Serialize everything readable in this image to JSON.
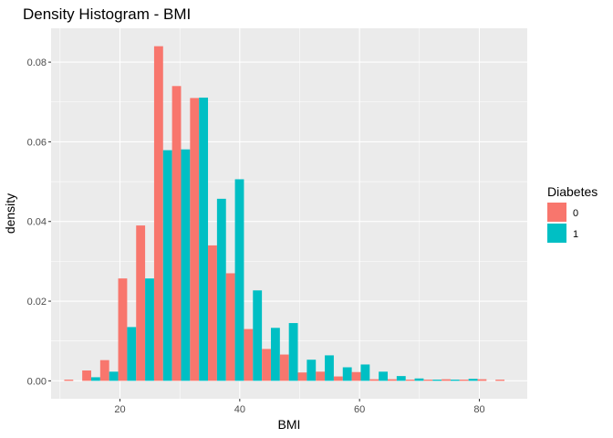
{
  "chart_data": {
    "type": "bar",
    "title": "Density Histogram - BMI",
    "xlabel": "BMI",
    "ylabel": "density",
    "xlim": [
      8.5,
      88
    ],
    "ylim": [
      -0.0045,
      0.0885
    ],
    "x_ticks": [
      20,
      40,
      60,
      80
    ],
    "x_tick_labels": [
      "20",
      "40",
      "60",
      "80"
    ],
    "y_ticks": [
      0.0,
      0.02,
      0.04,
      0.06,
      0.08
    ],
    "y_tick_labels": [
      "0.00",
      "0.02",
      "0.04",
      "0.06",
      "0.08"
    ],
    "grid": true,
    "bin_width": 3.0,
    "dodge": "side-by-side",
    "legend": {
      "title": "Diabetes",
      "placement": "right",
      "entries": [
        {
          "label": "0",
          "color": "#F8766D"
        },
        {
          "label": "1",
          "color": "#00BFC4"
        }
      ]
    },
    "x": [
      12.2,
      15.2,
      18.2,
      21.2,
      24.2,
      27.2,
      30.2,
      33.2,
      36.2,
      39.2,
      42.2,
      45.2,
      48.2,
      51.2,
      54.2,
      57.2,
      60.2,
      63.2,
      66.2,
      69.2,
      72.2,
      75.2,
      78.2,
      81.2,
      84.2
    ],
    "series": [
      {
        "name": "0",
        "color": "#F8766D",
        "values": [
          0.0003,
          0.0026,
          0.0052,
          0.0257,
          0.039,
          0.084,
          0.074,
          0.071,
          0.034,
          0.027,
          0.013,
          0.008,
          0.0066,
          0.0021,
          0.0023,
          0.0011,
          0.0022,
          0.0004,
          0.0004,
          0.0003,
          0.0003,
          0.0004,
          0.0003,
          0.0004,
          0.0003
        ]
      },
      {
        "name": "1",
        "color": "#00BFC4",
        "values": [
          0.0,
          0.0009,
          0.0023,
          0.0135,
          0.0257,
          0.0579,
          0.0581,
          0.0711,
          0.0457,
          0.0506,
          0.0227,
          0.0133,
          0.0145,
          0.0053,
          0.0064,
          0.0034,
          0.0041,
          0.0023,
          0.0012,
          0.0006,
          0.0003,
          0.0003,
          0.0005,
          0.0,
          0.0
        ]
      }
    ]
  }
}
